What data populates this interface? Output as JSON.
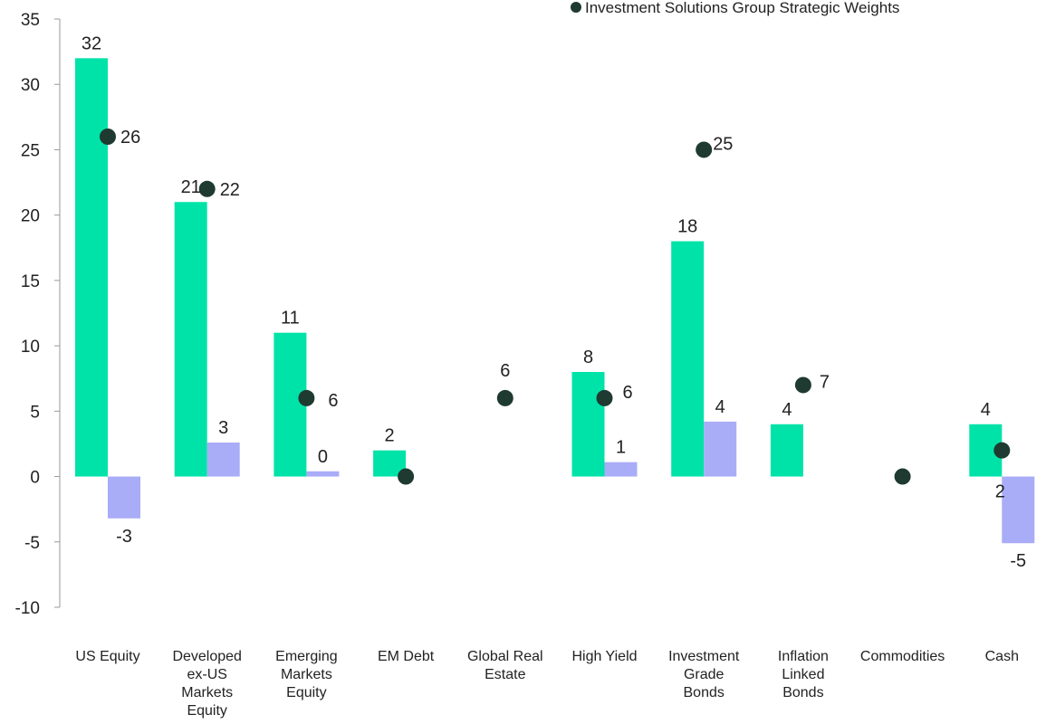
{
  "chart_data": {
    "type": "bar",
    "categories": [
      [
        "US Equity"
      ],
      [
        "Developed",
        "ex-US",
        "Markets",
        "Equity"
      ],
      [
        "Emerging",
        "Markets",
        "Equity"
      ],
      [
        "EM Debt"
      ],
      [
        "Global Real",
        "Estate"
      ],
      [
        "High Yield"
      ],
      [
        "Investment",
        "Grade",
        "Bonds"
      ],
      [
        "Inflation",
        "Linked",
        "Bonds"
      ],
      [
        "Commodities"
      ],
      [
        "Cash"
      ]
    ],
    "series": [
      {
        "kind": "bar",
        "color": "#00e3a8",
        "values": [
          32,
          21,
          11,
          2,
          null,
          8,
          18,
          4,
          null,
          4
        ],
        "labels": [
          "32",
          "21",
          "11",
          "2",
          "",
          "8",
          "18",
          "4",
          "",
          "4"
        ]
      },
      {
        "kind": "bar",
        "color": "#a9acf6",
        "values": [
          -3.2,
          2.6,
          0.4,
          null,
          null,
          1.1,
          4.2,
          null,
          null,
          -5.1
        ],
        "labels": [
          "-3",
          "3",
          "0",
          "",
          "",
          "1",
          "4",
          "",
          "",
          "-5"
        ]
      },
      {
        "name": "Investment Solutions Group Strategic Weights",
        "kind": "dot",
        "color": "#1f3a30",
        "values": [
          26,
          22,
          6,
          0,
          6,
          6,
          25,
          7,
          0,
          2
        ],
        "labels": [
          "26",
          "22",
          "6",
          "",
          "6",
          "6",
          "25",
          "7",
          "",
          "2"
        ]
      }
    ],
    "y_ticks": [
      35,
      30,
      25,
      20,
      15,
      10,
      5,
      0,
      -5,
      -10
    ],
    "ylim": [
      -10,
      35
    ],
    "legend_position": "top-right",
    "grid": false
  }
}
